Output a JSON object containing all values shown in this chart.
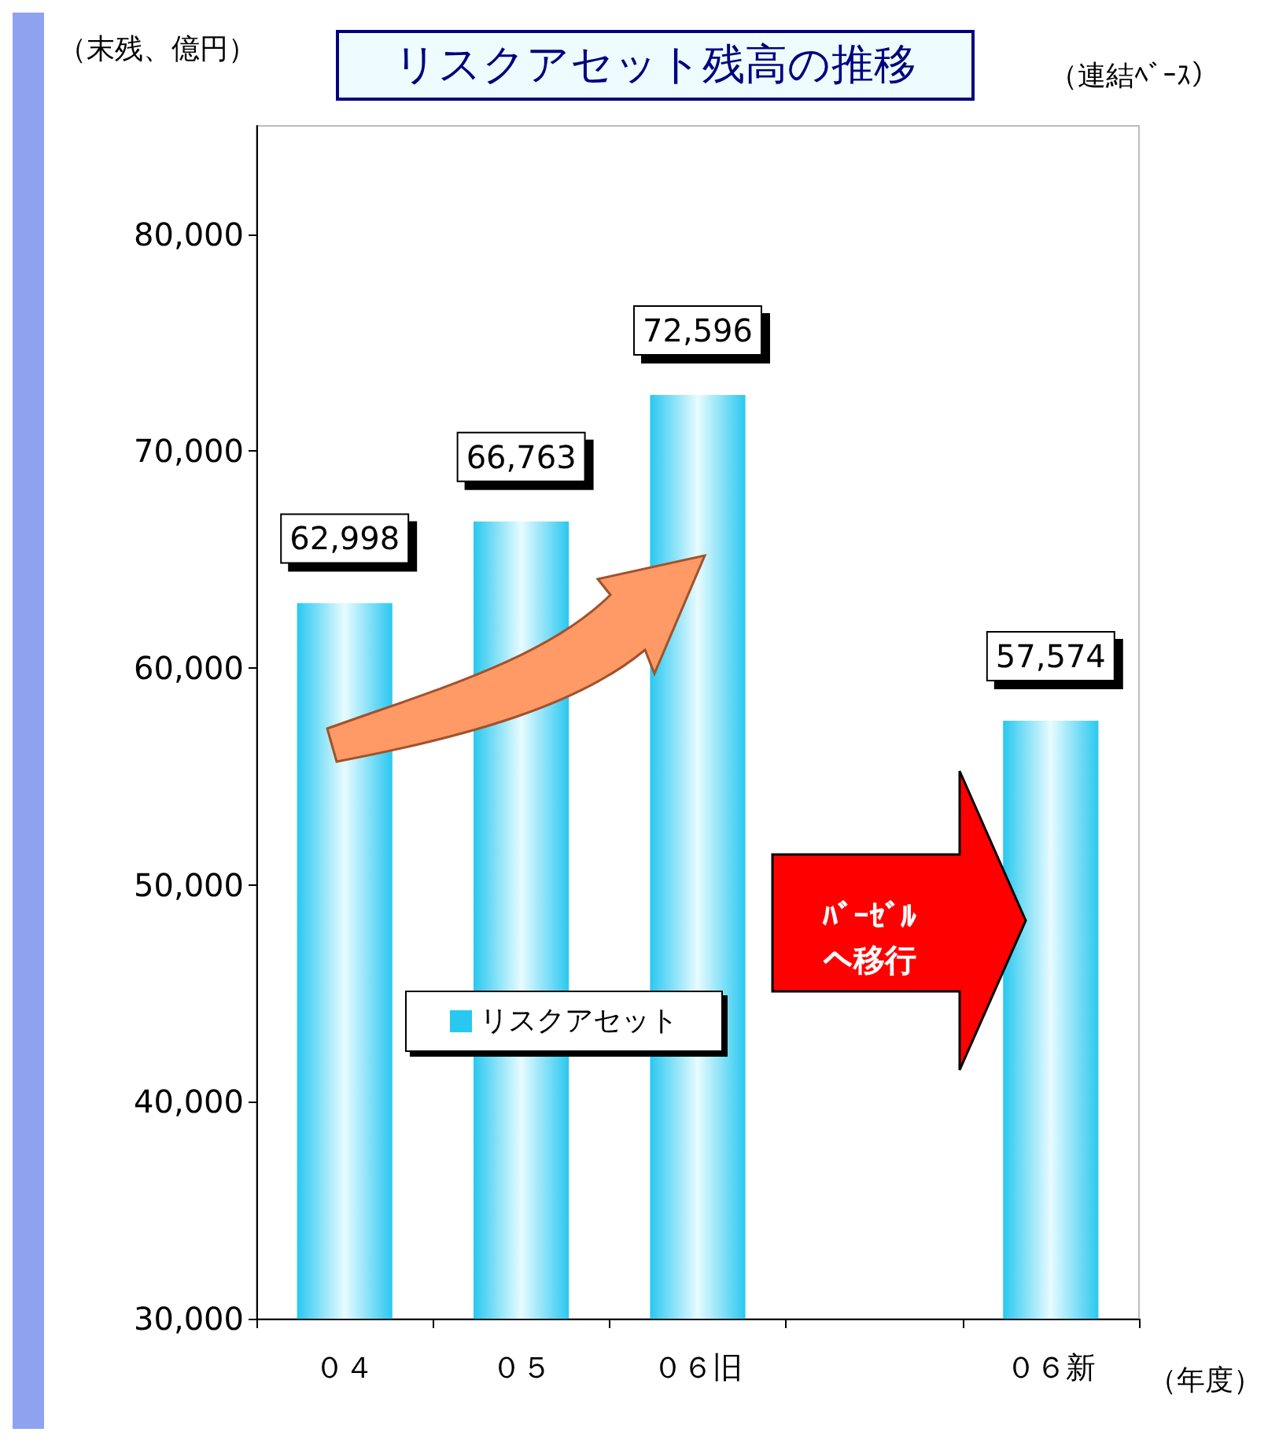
{
  "chart_data": {
    "type": "bar",
    "title": "リスクアセット残高の推移",
    "ylabel": "（末残、億円）",
    "xlabel": "（年度）",
    "annotations": [
      "（連結ﾍﾞｰｽ）",
      "ﾊﾞｰｾﾞﾙへ移行"
    ],
    "categories": [
      "０４",
      "０５",
      "０６旧",
      null,
      "０６新"
    ],
    "series": [
      {
        "name": "リスクアセット",
        "color": "#29c8f0",
        "values": [
          62998,
          66763,
          72596,
          null,
          57574
        ],
        "value_labels": [
          "62,998",
          "66,763",
          "72,596",
          null,
          "57,574"
        ]
      }
    ],
    "ylim": [
      30000,
      85000
    ],
    "yticks": [
      {
        "value": 30000,
        "label": "30,000"
      },
      {
        "value": 40000,
        "label": "40,000"
      },
      {
        "value": 50000,
        "label": "50,000"
      },
      {
        "value": 60000,
        "label": "60,000"
      },
      {
        "value": 70000,
        "label": "70,000"
      },
      {
        "value": 80000,
        "label": "80,000"
      }
    ],
    "grid": false,
    "legend": "bottom left"
  }
}
